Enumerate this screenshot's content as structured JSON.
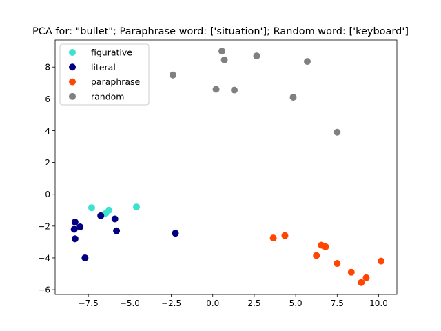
{
  "chart_data": {
    "type": "scatter",
    "title": "PCA for: \"bullet\"; Paraphrase word: ['situation']; Random word: ['keyboard']",
    "xlabel": "",
    "ylabel": "",
    "xlim": [
      -9.5,
      11.1
    ],
    "ylim": [
      -6.3,
      9.7
    ],
    "xticks": [
      -7.5,
      -5.0,
      -2.5,
      0.0,
      2.5,
      5.0,
      7.5,
      10.0
    ],
    "xtick_labels": [
      "−7.5",
      "−5.0",
      "−2.5",
      "0.0",
      "2.5",
      "5.0",
      "7.5",
      "10.0"
    ],
    "yticks": [
      -6,
      -4,
      -2,
      0,
      2,
      4,
      6,
      8
    ],
    "ytick_labels": [
      "−6",
      "−4",
      "−2",
      "0",
      "2",
      "4",
      "6",
      "8"
    ],
    "grid": false,
    "legend_position": "top-left",
    "series": [
      {
        "name": "figurative",
        "color": "#40e0d0",
        "points": [
          [
            -7.3,
            -0.85
          ],
          [
            -6.25,
            -1.0
          ],
          [
            -6.45,
            -1.2
          ],
          [
            -4.6,
            -0.8
          ]
        ]
      },
      {
        "name": "literal",
        "color": "#000080",
        "points": [
          [
            -8.3,
            -1.75
          ],
          [
            -8.0,
            -2.05
          ],
          [
            -8.35,
            -2.2
          ],
          [
            -8.3,
            -2.8
          ],
          [
            -7.7,
            -4.0
          ],
          [
            -6.75,
            -1.35
          ],
          [
            -5.9,
            -1.55
          ],
          [
            -5.8,
            -2.3
          ],
          [
            -2.25,
            -2.45
          ]
        ]
      },
      {
        "name": "paraphrase",
        "color": "#ff4500",
        "points": [
          [
            3.65,
            -2.75
          ],
          [
            4.35,
            -2.6
          ],
          [
            6.25,
            -3.85
          ],
          [
            6.55,
            -3.2
          ],
          [
            6.8,
            -3.3
          ],
          [
            7.5,
            -4.35
          ],
          [
            8.35,
            -4.9
          ],
          [
            8.95,
            -5.55
          ],
          [
            9.25,
            -5.25
          ],
          [
            10.15,
            -4.2
          ]
        ]
      },
      {
        "name": "random",
        "color": "#808080",
        "points": [
          [
            -2.4,
            7.5
          ],
          [
            0.55,
            9.0
          ],
          [
            0.7,
            8.45
          ],
          [
            2.65,
            8.7
          ],
          [
            0.2,
            6.6
          ],
          [
            1.3,
            6.55
          ],
          [
            5.7,
            8.35
          ],
          [
            4.85,
            6.1
          ],
          [
            7.5,
            3.9
          ]
        ]
      }
    ]
  }
}
